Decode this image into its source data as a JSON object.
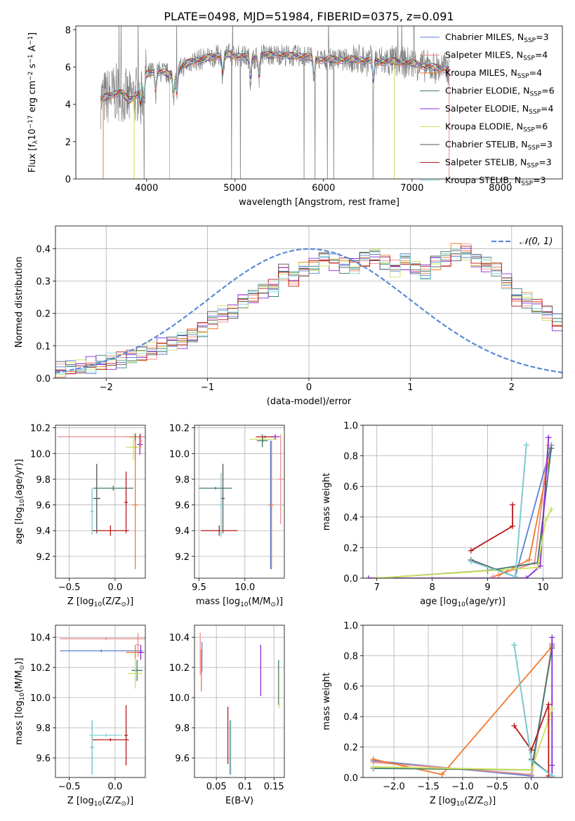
{
  "title": "PLATE=0498, MJD=51984, FIBERID=0375, z=0.091",
  "colors": {
    "Chabrier MILES": "#5b7fd6",
    "Salpeter MILES": "#f08c8c",
    "Kroupa MILES": "#f07a2a",
    "Chabrier ELODIE": "#3f7a6e",
    "Salpeter ELODIE": "#8a2bd6",
    "Kroupa ELODIE": "#cce05a",
    "Chabrier STELIB": "#555555",
    "Salpeter STELIB": "#b81818",
    "Kroupa STELIB": "#7fd3d8",
    "normal": "#5b8bd8",
    "data": "#808080"
  },
  "chart_data": [
    {
      "type": "line",
      "xlabel": "wavelength [Angstrom, rest frame]",
      "ylabel_parts": [
        "Flux [f",
        "λ",
        "10",
        "−17",
        " erg cm",
        "−2",
        " s",
        "−1",
        " A",
        "−1",
        "]"
      ],
      "xlim": [
        3200,
        8700
      ],
      "ylim": [
        0,
        8.2
      ],
      "xticks": [
        4000,
        5000,
        6000,
        7000,
        8000
      ],
      "yticks": [
        0,
        2,
        4,
        6,
        8
      ],
      "legend": "right",
      "legend_entries": [
        {
          "model": "Chabrier MILES",
          "main": "Chabrier MILES, N",
          "sub": "SSP",
          "tail": "=3"
        },
        {
          "model": "Salpeter MILES",
          "main": "Salpeter MILES, N",
          "sub": "SSP",
          "tail": "=4"
        },
        {
          "model": "Kroupa MILES",
          "main": "Kroupa MILES, N",
          "sub": "SSP",
          "tail": "=4"
        },
        {
          "model": "Chabrier ELODIE",
          "main": "Chabrier ELODIE, N",
          "sub": "SSP",
          "tail": "=6"
        },
        {
          "model": "Salpeter ELODIE",
          "main": "Salpeter ELODIE, N",
          "sub": "SSP",
          "tail": "=4"
        },
        {
          "model": "Kroupa ELODIE",
          "main": "Kroupa ELODIE, N",
          "sub": "SSP",
          "tail": "=6"
        },
        {
          "model": "Chabrier STELIB",
          "main": "Chabrier STELIB, N",
          "sub": "SSP",
          "tail": "=3"
        },
        {
          "model": "Salpeter STELIB",
          "main": "Salpeter STELIB, N",
          "sub": "SSP",
          "tail": "=3"
        },
        {
          "model": "Kroupa STELIB",
          "main": "Kroupa STELIB, N",
          "sub": "SSP",
          "tail": "=3"
        }
      ],
      "continuum": {
        "x": [
          3500,
          3600,
          3700,
          3800,
          3900,
          4000,
          4100,
          4200,
          4300,
          4400,
          4500,
          4600,
          4700,
          4800,
          4900,
          5000,
          5100,
          5200,
          5300,
          5400,
          5500,
          5600,
          5700,
          5800,
          5900,
          6000,
          6200,
          6400,
          6600,
          6800,
          7000,
          7200,
          7400,
          7600,
          7800,
          8000,
          8200,
          8400
        ],
        "y": [
          4.3,
          4.5,
          4.7,
          4.2,
          4.6,
          5.6,
          5.8,
          5.7,
          5.5,
          6.0,
          6.3,
          6.4,
          6.5,
          6.6,
          6.7,
          6.6,
          6.6,
          6.4,
          6.7,
          6.6,
          6.7,
          6.6,
          6.6,
          6.6,
          6.4,
          6.4,
          6.4,
          6.4,
          6.3,
          6.3,
          6.2,
          6.0,
          5.9,
          6.0,
          6.1,
          6.2,
          6.3,
          6.4
        ]
      },
      "absorption_lines": [
        3934,
        3969,
        4102,
        4304,
        4341,
        4861,
        5175,
        5270,
        5893,
        6563
      ],
      "model_dropouts": [
        {
          "model": "Kroupa MILES",
          "x": 3510
        },
        {
          "model": "Kroupa ELODIE",
          "x": 3860
        },
        {
          "model": "Kroupa STELIB",
          "x": 4260
        },
        {
          "model": "Kroupa ELODIE",
          "x": 6800
        },
        {
          "model": "Salpeter MILES",
          "x": 7420
        }
      ]
    },
    {
      "type": "line",
      "xlabel": "(data-model)/error",
      "ylabel": "Normed distribution",
      "xlim": [
        -2.5,
        2.5
      ],
      "ylim": [
        0,
        0.47
      ],
      "xticks": [
        -2,
        -1,
        0,
        1,
        2
      ],
      "yticks": [
        0.0,
        0.1,
        0.2,
        0.3,
        0.4
      ],
      "legend": "top-right",
      "legend_label": "𝒩(0, 1)",
      "normal": {
        "mu": 0,
        "sigma": 1
      },
      "bin_width": 0.1,
      "bin_start": -2.5,
      "base_hist": [
        0.025,
        0.03,
        0.035,
        0.04,
        0.045,
        0.05,
        0.055,
        0.065,
        0.075,
        0.085,
        0.1,
        0.11,
        0.115,
        0.13,
        0.15,
        0.18,
        0.2,
        0.21,
        0.24,
        0.25,
        0.27,
        0.28,
        0.33,
        0.31,
        0.34,
        0.35,
        0.37,
        0.36,
        0.35,
        0.35,
        0.37,
        0.38,
        0.36,
        0.34,
        0.36,
        0.34,
        0.33,
        0.36,
        0.37,
        0.39,
        0.39,
        0.36,
        0.35,
        0.34,
        0.3,
        0.25,
        0.24,
        0.22,
        0.2,
        0.17,
        0.14,
        0.13,
        0.12,
        0.1,
        0.095,
        0.085,
        0.075,
        0.065,
        0.06,
        0.05,
        0.045,
        0.04,
        0.035,
        0.03,
        0.03,
        0.025,
        0.02,
        0.02,
        0.015,
        0.015
      ]
    },
    {
      "type": "scatter",
      "xlabel_parts": [
        "Z [log",
        "10",
        "(Z/Z",
        "⊙",
        ")]"
      ],
      "ylabel_parts": [
        "age  [log",
        "10",
        "(age/yr)]"
      ],
      "xlim": [
        -0.65,
        0.33
      ],
      "ylim": [
        9.03,
        10.22
      ],
      "xticks": [
        -0.5,
        0.0
      ],
      "yticks": [
        9.2,
        9.4,
        9.6,
        9.8,
        10.0,
        10.2
      ],
      "crosses": [
        {
          "model": "Chabrier MILES",
          "x": 0.22,
          "xerr": 0.12,
          "y": 10.13,
          "yerr": 0.02
        },
        {
          "model": "Salpeter MILES",
          "x": 0.22,
          "xerr": 0.85,
          "y": 10.13,
          "yerr": 0.02
        },
        {
          "model": "Kroupa MILES",
          "x": 0.22,
          "xerr": 0.05,
          "y": 10.13,
          "yerr": 0.03
        },
        {
          "model": "Chabrier ELODIE",
          "x": 0.22,
          "xerr": 0.03,
          "y": 10.05,
          "yerr": 0.1
        },
        {
          "model": "Salpeter ELODIE",
          "x": 0.27,
          "xerr": 0.03,
          "y": 10.07,
          "yerr": 0.08
        },
        {
          "model": "Kroupa ELODIE",
          "x": 0.2,
          "xerr": 0.08,
          "y": 10.05,
          "yerr": 0.1
        },
        {
          "model": "Chabrier STELIB",
          "x": -0.2,
          "xerr": 0.04,
          "y": 9.65,
          "yerr": 0.27
        },
        {
          "model": "Salpeter STELIB",
          "x": -0.05,
          "xerr": 0.2,
          "y": 9.4,
          "yerr": 0.04
        },
        {
          "model": "Kroupa STELIB",
          "x": -0.25,
          "xerr": 0.02,
          "y": 9.55,
          "yerr": 0.18
        },
        {
          "model": "Chabrier ELODIE",
          "x": -0.02,
          "xerr": 0.22,
          "y": 9.73,
          "yerr": 0.02
        },
        {
          "model": "Salpeter STELIB",
          "x": 0.12,
          "xerr": 0.02,
          "y": 9.62,
          "yerr": 0.24
        },
        {
          "model": "Kroupa MILES",
          "x": 0.22,
          "xerr": 0.03,
          "y": 9.6,
          "yerr": 0.5
        },
        {
          "model": "Kroupa STELIB",
          "x": -0.25,
          "xerr": 0.02,
          "y": 9.55,
          "yerr": 0.18
        },
        {
          "model": "Salpeter MILES",
          "x": 0.28,
          "xerr": 0.02,
          "y": 10.1,
          "yerr": 0.06
        }
      ]
    },
    {
      "type": "scatter",
      "xlabel_parts": [
        "mass [log",
        "10",
        "(M/M",
        "⊙",
        ")]"
      ],
      "ylabel": "",
      "xlim": [
        9.45,
        10.43
      ],
      "ylim": [
        9.03,
        10.22
      ],
      "xticks": [
        9.5,
        10.0
      ],
      "yticks": [
        9.2,
        9.4,
        9.6,
        9.8,
        10.0,
        10.2
      ],
      "crosses": [
        {
          "model": "Chabrier MILES",
          "x": 10.28,
          "xerr": 0.02,
          "y": 9.6,
          "yerr": 0.5
        },
        {
          "model": "Salpeter MILES",
          "x": 10.39,
          "xerr": 0.03,
          "y": 9.8,
          "yerr": 0.35
        },
        {
          "model": "Kroupa MILES",
          "x": 10.29,
          "xerr": 0.02,
          "y": 9.6,
          "yerr": 0.5
        },
        {
          "model": "Kroupa ELODIE",
          "x": 10.2,
          "xerr": 0.15,
          "y": 10.11,
          "yerr": 0.02
        },
        {
          "model": "Salpeter ELODIE",
          "x": 10.33,
          "xerr": 0.05,
          "y": 10.13,
          "yerr": 0.02
        },
        {
          "model": "Chabrier ELODIE",
          "x": 10.19,
          "xerr": 0.06,
          "y": 10.1,
          "yerr": 0.05
        },
        {
          "model": "Chabrier STELIB",
          "x": 9.76,
          "xerr": 0.02,
          "y": 9.65,
          "yerr": 0.27
        },
        {
          "model": "Salpeter STELIB",
          "x": 9.72,
          "xerr": 0.2,
          "y": 9.4,
          "yerr": 0.04
        },
        {
          "model": "Kroupa STELIB",
          "x": 9.74,
          "xerr": 0.02,
          "y": 9.6,
          "yerr": 0.25
        },
        {
          "model": "Chabrier ELODIE",
          "x": 9.68,
          "xerr": 0.18,
          "y": 9.73,
          "yerr": 0.01
        },
        {
          "model": "Salpeter STELIB",
          "x": 10.22,
          "xerr": 0.1,
          "y": 10.13,
          "yerr": 0.01
        }
      ]
    },
    {
      "type": "line",
      "xlabel_parts": [
        "age  [log",
        "10",
        "(age/yr)]"
      ],
      "ylabel": "mass weight",
      "xlim": [
        6.75,
        10.35
      ],
      "ylim": [
        0,
        1.0
      ],
      "xticks": [
        7,
        8,
        9,
        10
      ],
      "yticks": [
        0.0,
        0.2,
        0.4,
        0.6,
        0.8,
        1.0
      ],
      "series": [
        {
          "model": "Chabrier MILES",
          "x": [
            8.7,
            9.5,
            10.15
          ],
          "y": [
            0.11,
            0.01,
            0.87
          ]
        },
        {
          "model": "Salpeter MILES",
          "x": [
            9.1,
            9.85,
            10.1
          ],
          "y": [
            0.01,
            0.1,
            0.87
          ]
        },
        {
          "model": "Kroupa MILES",
          "x": [
            9.2,
            9.75,
            10.15
          ],
          "y": [
            0.02,
            0.12,
            0.85
          ]
        },
        {
          "model": "Chabrier ELODIE",
          "x": [
            7.0,
            9.0,
            9.9,
            10.15
          ],
          "y": [
            0.0,
            0.05,
            0.1,
            0.85
          ]
        },
        {
          "model": "Salpeter ELODIE",
          "x": [
            6.85,
            9.7,
            9.95,
            10.1
          ],
          "y": [
            0.0,
            0.0,
            0.08,
            0.92
          ]
        },
        {
          "model": "Kroupa ELODIE",
          "x": [
            7.0,
            9.9,
            10.05,
            10.15
          ],
          "y": [
            0.0,
            0.07,
            0.38,
            0.45
          ]
        },
        {
          "model": "Chabrier STELIB",
          "x": [
            8.7,
            9.5,
            9.7
          ],
          "y": [
            0.12,
            0.01,
            0.87
          ]
        },
        {
          "model": "Salpeter STELIB",
          "x": [
            8.7,
            9.45,
            9.45
          ],
          "y": [
            0.18,
            0.34,
            0.48
          ]
        },
        {
          "model": "Kroupa STELIB",
          "x": [
            8.7,
            9.5,
            9.7
          ],
          "y": [
            0.11,
            0.01,
            0.87
          ]
        }
      ]
    },
    {
      "type": "scatter",
      "xlabel_parts": [
        "Z [log",
        "10",
        "(Z/Z",
        "⊙",
        ")]"
      ],
      "ylabel_parts": [
        "mass [log",
        "10",
        "(M/M",
        "⊙",
        ")]"
      ],
      "xlim": [
        -0.65,
        0.33
      ],
      "ylim": [
        9.47,
        10.48
      ],
      "xticks": [
        -0.5,
        0.0
      ],
      "yticks": [
        9.6,
        9.8,
        10.0,
        10.2,
        10.4
      ],
      "crosses": [
        {
          "model": "Chabrier MILES",
          "x": -0.15,
          "xerr": 0.45,
          "y": 10.31,
          "yerr": 0.01
        },
        {
          "model": "Salpeter MILES",
          "x": -0.1,
          "xerr": 0.5,
          "y": 10.39,
          "yerr": 0.01
        },
        {
          "model": "Kroupa MILES",
          "x": 0.22,
          "xerr": 0.1,
          "y": 10.3,
          "yerr": 0.05
        },
        {
          "model": "Chabrier ELODIE",
          "x": 0.24,
          "xerr": 0.06,
          "y": 10.18,
          "yerr": 0.07
        },
        {
          "model": "Salpeter ELODIE",
          "x": 0.28,
          "xerr": 0.03,
          "y": 10.3,
          "yerr": 0.05
        },
        {
          "model": "Kroupa ELODIE",
          "x": 0.22,
          "xerr": 0.08,
          "y": 10.16,
          "yerr": 0.1
        },
        {
          "model": "Chabrier STELIB",
          "x": -0.25,
          "xerr": 0.02,
          "y": 9.67,
          "yerr": 0.18
        },
        {
          "model": "Salpeter STELIB",
          "x": -0.05,
          "xerr": 0.2,
          "y": 9.72,
          "yerr": 0.01
        },
        {
          "model": "Kroupa STELIB",
          "x": -0.1,
          "xerr": 0.18,
          "y": 9.75,
          "yerr": 0.01
        },
        {
          "model": "Salpeter STELIB",
          "x": 0.12,
          "xerr": 0.02,
          "y": 9.75,
          "yerr": 0.2
        },
        {
          "model": "Kroupa STELIB",
          "x": -0.25,
          "xerr": 0.02,
          "y": 9.67,
          "yerr": 0.18
        },
        {
          "model": "Salpeter MILES",
          "x": 0.25,
          "xerr": 0.02,
          "y": 10.35,
          "yerr": 0.08
        }
      ]
    },
    {
      "type": "scatter",
      "xlabel": "E(B-V)",
      "ylabel": "",
      "xlim": [
        0.012,
        0.168
      ],
      "ylim": [
        9.47,
        10.48
      ],
      "xticks": [
        0.05,
        0.1,
        0.15
      ],
      "yticks": [
        9.6,
        9.8,
        10.0,
        10.2,
        10.4
      ],
      "crosses": [
        {
          "model": "Chabrier MILES",
          "x": 0.025,
          "xerr": 0.0,
          "y": 10.27,
          "yerr": 0.1
        },
        {
          "model": "Salpeter MILES",
          "x": 0.022,
          "xerr": 0.0,
          "y": 10.29,
          "yerr": 0.14
        },
        {
          "model": "Kroupa MILES",
          "x": 0.024,
          "xerr": 0.0,
          "y": 10.18,
          "yerr": 0.14
        },
        {
          "model": "Chabrier ELODIE",
          "x": 0.158,
          "xerr": 0.0,
          "y": 10.1,
          "yerr": 0.15
        },
        {
          "model": "Salpeter ELODIE",
          "x": 0.127,
          "xerr": 0.0,
          "y": 10.18,
          "yerr": 0.17
        },
        {
          "model": "Kroupa ELODIE",
          "x": 0.159,
          "xerr": 0.0,
          "y": 10.05,
          "yerr": 0.12
        },
        {
          "model": "Chabrier STELIB",
          "x": 0.074,
          "xerr": 0.0,
          "y": 9.67,
          "yerr": 0.18
        },
        {
          "model": "Salpeter STELIB",
          "x": 0.07,
          "xerr": 0.0,
          "y": 9.75,
          "yerr": 0.19
        },
        {
          "model": "Kroupa STELIB",
          "x": 0.075,
          "xerr": 0.0,
          "y": 9.67,
          "yerr": 0.18
        }
      ]
    },
    {
      "type": "line",
      "xlabel_parts": [
        "Z [log",
        "10",
        "(Z/Z",
        "⊙",
        ")]"
      ],
      "ylabel": "mass weight",
      "xlim": [
        -2.45,
        0.45
      ],
      "ylim": [
        0,
        1.0
      ],
      "xticks": [
        -2.0,
        -1.5,
        -1.0,
        -0.5,
        0.0
      ],
      "yticks": [
        0.0,
        0.2,
        0.4,
        0.6,
        0.8,
        1.0
      ],
      "series": [
        {
          "model": "Chabrier MILES",
          "x": [
            -2.3,
            0.0,
            0.3
          ],
          "y": [
            0.11,
            0.01,
            0.87
          ]
        },
        {
          "model": "Salpeter MILES",
          "x": [
            -2.3,
            0.0,
            0.3
          ],
          "y": [
            0.1,
            0.02,
            0.88
          ]
        },
        {
          "model": "Kroupa MILES",
          "x": [
            -2.3,
            -1.3,
            0.3
          ],
          "y": [
            0.12,
            0.02,
            0.86
          ]
        },
        {
          "model": "Chabrier ELODIE",
          "x": [
            -2.3,
            0.0,
            0.3
          ],
          "y": [
            0.06,
            0.05,
            0.85
          ]
        },
        {
          "model": "Salpeter ELODIE",
          "x": [
            0.3,
            0.3,
            0.3
          ],
          "y": [
            0.0,
            0.08,
            0.92
          ]
        },
        {
          "model": "Kroupa ELODIE",
          "x": [
            -2.3,
            0.0,
            0.25,
            0.3
          ],
          "y": [
            0.07,
            0.05,
            0.38,
            0.45
          ]
        },
        {
          "model": "Chabrier STELIB",
          "x": [
            -0.25,
            0.0,
            0.3
          ],
          "y": [
            0.87,
            0.12,
            0.01
          ]
        },
        {
          "model": "Salpeter STELIB",
          "x": [
            -0.25,
            0.0,
            0.25,
            0.25
          ],
          "y": [
            0.34,
            0.18,
            0.48,
            0.01
          ]
        },
        {
          "model": "Kroupa STELIB",
          "x": [
            -0.25,
            0.0,
            0.3
          ],
          "y": [
            0.87,
            0.11,
            0.01
          ]
        }
      ]
    }
  ]
}
